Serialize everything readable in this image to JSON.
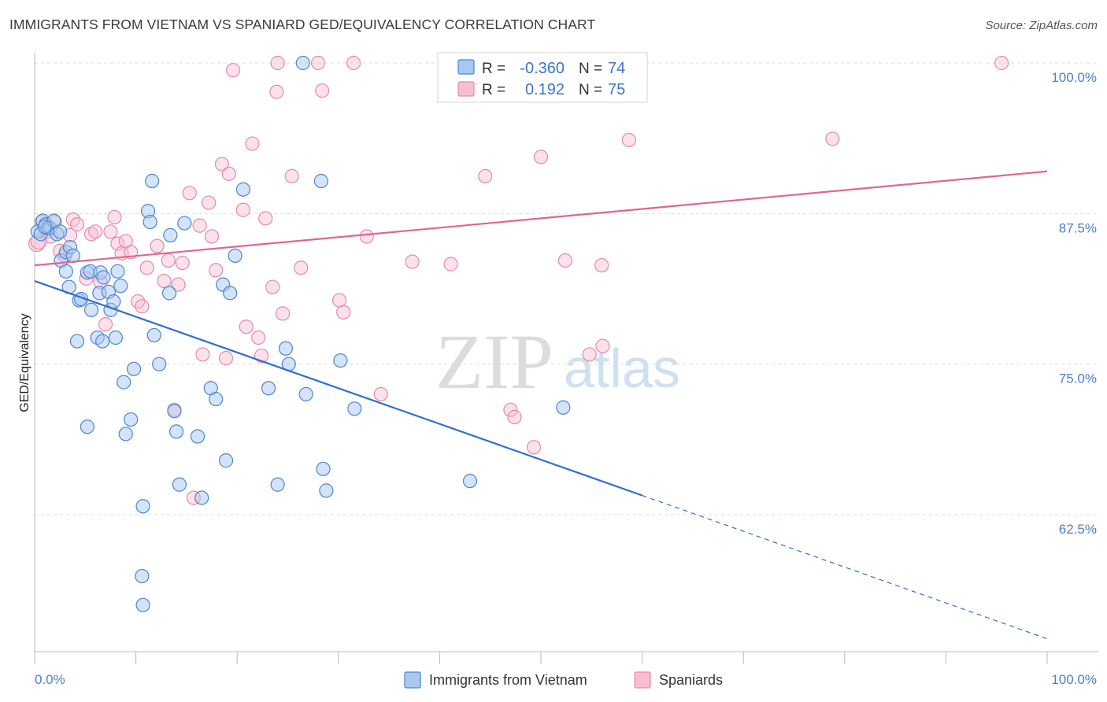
{
  "title": "IMMIGRANTS FROM VIETNAM VS SPANIARD GED/EQUIVALENCY CORRELATION CHART",
  "source": "Source: ZipAtlas.com",
  "watermark": {
    "zip": "ZIP",
    "atlas": "atlas"
  },
  "colors": {
    "blue_fill": "#a9c8f0",
    "blue_stroke": "#4a86d4",
    "blue_line": "#2f6fce",
    "pink_fill": "#f6bfd1",
    "pink_stroke": "#e58aa8",
    "pink_line": "#e06690",
    "grid": "#dddddd",
    "tick_text": "#4a7fcf"
  },
  "legend": {
    "rows": [
      {
        "r_label": "R =",
        "r_value": "-0.360",
        "n_label": "N =",
        "n_value": "74"
      },
      {
        "r_label": "R =",
        "r_value": "0.192",
        "n_label": "N =",
        "n_value": "75"
      }
    ]
  },
  "bottom_legend": [
    "Immigrants from Vietnam",
    "Spaniards"
  ],
  "chart_data": {
    "type": "scatter",
    "title": "IMMIGRANTS FROM VIETNAM VS SPANIARD GED/EQUIVALENCY CORRELATION CHART",
    "xlabel": "",
    "ylabel": "GED/Equivalency",
    "xlim": [
      0,
      100
    ],
    "ylim": [
      51.5,
      101
    ],
    "x_tick_labels": [
      "0.0%",
      "100.0%"
    ],
    "y_ticks": [
      62.5,
      75.0,
      87.5,
      100.0
    ],
    "y_tick_labels": [
      "62.5%",
      "75.0%",
      "87.5%",
      "100.0%"
    ],
    "grid": true,
    "legend_position": "top-center",
    "series": [
      {
        "name": "Immigrants from Vietnam",
        "r": -0.36,
        "n": 74,
        "trend": {
          "x": [
            0,
            60,
            100
          ],
          "y": [
            81.9,
            64.1,
            52.2
          ],
          "solid_until_x": 60
        },
        "points": [
          [
            0.3,
            86.0
          ],
          [
            0.6,
            85.8
          ],
          [
            0.8,
            86.9
          ],
          [
            1.1,
            86.6
          ],
          [
            1.3,
            86.3
          ],
          [
            1.5,
            86.3
          ],
          [
            1.9,
            86.9
          ],
          [
            2.2,
            85.8
          ],
          [
            2.6,
            83.6
          ],
          [
            3.1,
            84.3
          ],
          [
            3.1,
            82.7
          ],
          [
            3.5,
            84.7
          ],
          [
            3.8,
            84.0
          ],
          [
            3.4,
            81.4
          ],
          [
            4.2,
            76.9
          ],
          [
            4.4,
            80.3
          ],
          [
            4.6,
            80.4
          ],
          [
            5.2,
            82.6
          ],
          [
            5.5,
            82.7
          ],
          [
            5.6,
            79.5
          ],
          [
            6.2,
            77.2
          ],
          [
            6.4,
            80.9
          ],
          [
            6.5,
            82.6
          ],
          [
            6.7,
            76.9
          ],
          [
            6.8,
            82.2
          ],
          [
            7.3,
            81.0
          ],
          [
            7.5,
            79.5
          ],
          [
            7.8,
            80.2
          ],
          [
            8.0,
            77.2
          ],
          [
            8.2,
            82.7
          ],
          [
            8.5,
            81.5
          ],
          [
            8.8,
            73.5
          ],
          [
            9.0,
            69.2
          ],
          [
            9.5,
            70.4
          ],
          [
            9.8,
            74.6
          ],
          [
            10.7,
            63.2
          ],
          [
            11.2,
            87.7
          ],
          [
            11.4,
            86.8
          ],
          [
            11.6,
            90.2
          ],
          [
            11.8,
            77.4
          ],
          [
            12.3,
            75.0
          ],
          [
            13.3,
            80.9
          ],
          [
            13.4,
            85.7
          ],
          [
            13.8,
            71.1
          ],
          [
            14.0,
            69.4
          ],
          [
            14.3,
            65.0
          ],
          [
            14.8,
            86.7
          ],
          [
            16.1,
            69.0
          ],
          [
            16.5,
            63.9
          ],
          [
            17.4,
            73.0
          ],
          [
            17.9,
            72.1
          ],
          [
            18.6,
            81.6
          ],
          [
            18.9,
            67.0
          ],
          [
            19.3,
            80.9
          ],
          [
            19.8,
            84.0
          ],
          [
            20.6,
            89.5
          ],
          [
            23.1,
            73.0
          ],
          [
            24.0,
            65.0
          ],
          [
            24.8,
            76.3
          ],
          [
            25.1,
            75.0
          ],
          [
            26.5,
            100.0
          ],
          [
            26.8,
            72.5
          ],
          [
            28.3,
            90.2
          ],
          [
            28.5,
            66.3
          ],
          [
            28.8,
            64.5
          ],
          [
            30.2,
            75.3
          ],
          [
            31.6,
            71.3
          ],
          [
            43.0,
            65.3
          ],
          [
            52.2,
            71.4
          ],
          [
            5.2,
            69.8
          ],
          [
            10.6,
            57.4
          ],
          [
            10.7,
            55.0
          ],
          [
            1.0,
            86.4
          ],
          [
            2.5,
            86.0
          ]
        ]
      },
      {
        "name": "Spaniards",
        "r": 0.192,
        "n": 75,
        "trend": {
          "x": [
            0,
            100
          ],
          "y": [
            83.2,
            91.0
          ]
        },
        "points": [
          [
            0.2,
            85.0
          ],
          [
            0.7,
            86.8
          ],
          [
            1.2,
            86.0
          ],
          [
            1.6,
            85.6
          ],
          [
            2.0,
            86.8
          ],
          [
            2.5,
            84.4
          ],
          [
            3.0,
            84.0
          ],
          [
            3.5,
            85.7
          ],
          [
            3.8,
            87.0
          ],
          [
            4.2,
            86.6
          ],
          [
            5.1,
            82.1
          ],
          [
            5.6,
            85.8
          ],
          [
            6.0,
            86.0
          ],
          [
            6.5,
            81.8
          ],
          [
            7.0,
            78.3
          ],
          [
            7.5,
            86.0
          ],
          [
            7.9,
            87.2
          ],
          [
            8.2,
            85.0
          ],
          [
            8.6,
            84.2
          ],
          [
            9.0,
            85.2
          ],
          [
            9.5,
            84.3
          ],
          [
            10.2,
            80.2
          ],
          [
            10.6,
            79.8
          ],
          [
            11.1,
            83.0
          ],
          [
            12.1,
            84.8
          ],
          [
            12.8,
            81.9
          ],
          [
            13.2,
            83.6
          ],
          [
            13.8,
            71.2
          ],
          [
            14.2,
            81.6
          ],
          [
            14.6,
            83.4
          ],
          [
            15.3,
            89.2
          ],
          [
            15.7,
            63.9
          ],
          [
            16.3,
            86.5
          ],
          [
            16.6,
            75.8
          ],
          [
            17.2,
            88.4
          ],
          [
            17.5,
            85.6
          ],
          [
            17.9,
            82.8
          ],
          [
            18.5,
            91.6
          ],
          [
            18.9,
            75.5
          ],
          [
            19.2,
            90.8
          ],
          [
            19.6,
            99.4
          ],
          [
            20.6,
            87.8
          ],
          [
            20.9,
            78.1
          ],
          [
            21.5,
            93.3
          ],
          [
            22.1,
            77.2
          ],
          [
            22.4,
            75.7
          ],
          [
            22.8,
            87.1
          ],
          [
            23.5,
            81.4
          ],
          [
            23.9,
            97.6
          ],
          [
            24.0,
            100.0
          ],
          [
            24.5,
            79.2
          ],
          [
            25.4,
            90.6
          ],
          [
            26.3,
            83.0
          ],
          [
            28.0,
            100.0
          ],
          [
            28.4,
            97.7
          ],
          [
            30.1,
            80.3
          ],
          [
            30.5,
            79.3
          ],
          [
            31.5,
            100.0
          ],
          [
            32.8,
            85.6
          ],
          [
            34.2,
            72.5
          ],
          [
            37.3,
            83.5
          ],
          [
            41.1,
            83.3
          ],
          [
            44.5,
            90.6
          ],
          [
            47.0,
            71.2
          ],
          [
            47.4,
            70.6
          ],
          [
            49.3,
            68.1
          ],
          [
            50.0,
            92.2
          ],
          [
            52.4,
            83.6
          ],
          [
            54.8,
            75.8
          ],
          [
            56.0,
            83.2
          ],
          [
            56.1,
            76.5
          ],
          [
            58.7,
            93.6
          ],
          [
            78.8,
            93.7
          ],
          [
            95.5,
            100.0
          ],
          [
            0.4,
            85.2
          ]
        ]
      }
    ]
  }
}
